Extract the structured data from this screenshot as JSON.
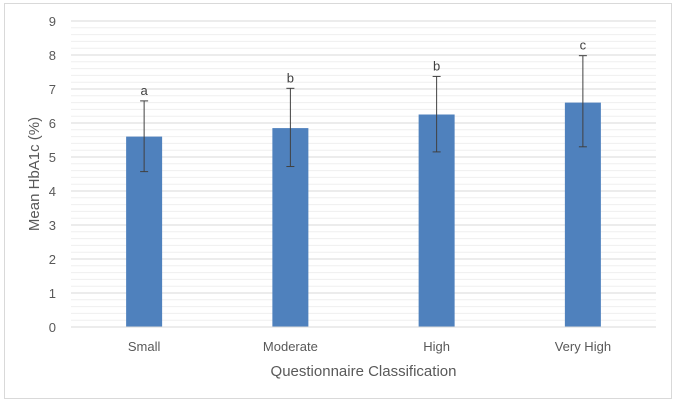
{
  "chart_data": {
    "type": "bar",
    "title": "",
    "xlabel": "Questionnaire Classification",
    "ylabel": "Mean HbA1c (%)",
    "categories": [
      "Small",
      "Moderate",
      "High",
      "Very High"
    ],
    "values": [
      5.6,
      5.85,
      6.25,
      6.6
    ],
    "error_upper": [
      6.65,
      7.02,
      7.37,
      7.98
    ],
    "error_lower": [
      4.57,
      4.72,
      5.15,
      5.3
    ],
    "significance_labels": [
      "a",
      "b",
      "b",
      "c"
    ],
    "ylim": [
      0,
      9
    ],
    "yticks": [
      "0",
      "1",
      "2",
      "3",
      "4",
      "5",
      "6",
      "7",
      "8",
      "9"
    ],
    "grid": true,
    "legend": "none",
    "colors": {
      "bar": "#4f81bd",
      "gridline": "#d9d9d9",
      "error_bar": "#404040",
      "text": "#595959"
    }
  }
}
